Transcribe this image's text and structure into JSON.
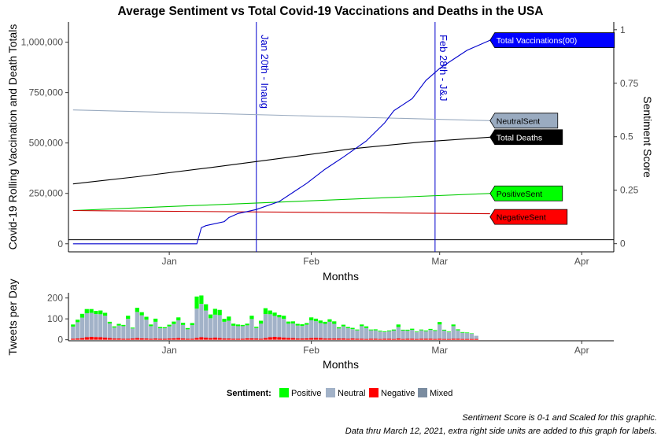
{
  "chart_data": [
    {
      "type": "line",
      "title": "Average Sentiment vs Total Covid-19 Vaccinations and Deaths in the USA",
      "xlabel": "Months",
      "ylabel": "Covid-19 Rolling Vaccination and Death Totals",
      "y2label": "Sentiment Score",
      "x_ticks": [
        "Jan",
        "Feb",
        "Mar",
        "Apr"
      ],
      "x_tick_dates": [
        "2021-01-01",
        "2021-02-01",
        "2021-03-01",
        "2021-04-01"
      ],
      "xlim": [
        "2020-12-10",
        "2021-04-08"
      ],
      "ylim": [
        -40000,
        1100000
      ],
      "y_ticks": [
        0,
        250000,
        500000,
        750000,
        1000000
      ],
      "y_tick_labels": [
        "0",
        "250,000",
        "500,000",
        "750,000",
        "1,000,000"
      ],
      "y2lim": [
        -0.038,
        1.036
      ],
      "y2_ticks": [
        0,
        0.25,
        0.5,
        0.75,
        1
      ],
      "y2_tick_labels": [
        "0",
        "0.25",
        "0.5",
        "0.75",
        "1"
      ],
      "grid": false,
      "hline_y": 20000,
      "vlines": [
        {
          "date": "2021-01-20",
          "label": "Jan 20th - Inaug",
          "color": "#0000cc"
        },
        {
          "date": "2021-02-28",
          "label": "Feb 28th - J&J",
          "color": "#0000cc"
        }
      ],
      "series": [
        {
          "name": "Total Vaccinations(00)",
          "axis": "left",
          "color": "#0000cc",
          "fill": "#0000ff",
          "text_color": "#ffffff",
          "x": [
            "2020-12-11",
            "2020-12-14",
            "2020-12-20",
            "2020-12-31",
            "2021-01-07",
            "2021-01-08",
            "2021-01-09",
            "2021-01-13",
            "2021-01-14",
            "2021-01-16",
            "2021-01-18",
            "2021-01-20",
            "2021-01-25",
            "2021-01-31",
            "2021-02-04",
            "2021-02-08",
            "2021-02-13",
            "2021-02-17",
            "2021-02-19",
            "2021-02-23",
            "2021-02-26",
            "2021-03-01",
            "2021-03-05",
            "2021-03-07",
            "2021-03-10",
            "2021-03-12"
          ],
          "values": [
            0,
            0,
            0,
            0,
            0,
            80000,
            90000,
            110000,
            130000,
            150000,
            160000,
            170000,
            210000,
            300000,
            370000,
            430000,
            510000,
            600000,
            660000,
            720000,
            810000,
            870000,
            930000,
            960000,
            990000,
            1010000
          ]
        },
        {
          "name": "Total Deaths",
          "axis": "left",
          "color": "#000000",
          "fill": "#000000",
          "text_color": "#ffffff",
          "x": [
            "2020-12-11",
            "2020-12-25",
            "2021-01-10",
            "2021-01-25",
            "2021-02-10",
            "2021-02-25",
            "2021-03-12"
          ],
          "values": [
            297000,
            333000,
            378000,
            423000,
            472000,
            505000,
            529000
          ]
        },
        {
          "name": "NeutralSent",
          "axis": "right",
          "color": "#9aabc0",
          "fill": "#9aabc0",
          "text_color": "#000000",
          "x": [
            "2020-12-11",
            "2021-03-12"
          ],
          "values": [
            0.625,
            0.575
          ]
        },
        {
          "name": "PositiveSent",
          "axis": "right",
          "color": "#00cc00",
          "fill": "#00ff00",
          "text_color": "#000000",
          "x": [
            "2020-12-11",
            "2021-03-12"
          ],
          "values": [
            0.155,
            0.235
          ]
        },
        {
          "name": "NegativeSent",
          "axis": "right",
          "color": "#cc0000",
          "fill": "#ff0000",
          "text_color": "#000000",
          "x": [
            "2020-12-11",
            "2021-03-12"
          ],
          "values": [
            0.155,
            0.14
          ]
        }
      ]
    },
    {
      "type": "bar",
      "stacked": true,
      "xlabel": "Months",
      "ylabel": "Tweets per Day",
      "x_ticks": [
        "Jan",
        "Feb",
        "Mar",
        "Apr"
      ],
      "x_tick_dates": [
        "2021-01-01",
        "2021-02-01",
        "2021-03-01",
        "2021-04-01"
      ],
      "xlim": [
        "2020-12-10",
        "2021-04-08"
      ],
      "ylim": [
        -5,
        225
      ],
      "y_ticks": [
        0,
        100,
        200
      ],
      "y_tick_labels": [
        "0",
        "100",
        "200"
      ],
      "grid": false,
      "start_date": "2020-12-11",
      "series": [
        {
          "name": "Negative",
          "color": "#ff0000",
          "values": [
            5,
            6,
            8,
            12,
            14,
            13,
            12,
            10,
            8,
            6,
            6,
            5,
            5,
            6,
            8,
            7,
            6,
            5,
            6,
            5,
            5,
            6,
            7,
            8,
            6,
            5,
            5,
            9,
            12,
            10,
            8,
            10,
            8,
            6,
            6,
            5,
            5,
            5,
            7,
            7,
            6,
            5,
            8,
            12,
            14,
            12,
            10,
            9,
            8,
            6,
            6,
            7,
            8,
            9,
            8,
            6,
            6,
            6,
            6,
            6,
            5,
            6,
            5,
            5,
            4,
            5,
            5,
            4,
            5,
            5,
            4,
            6,
            4,
            5,
            5,
            4,
            5,
            5,
            5,
            4,
            5,
            4,
            4,
            5,
            5,
            4,
            4,
            4,
            4
          ]
        },
        {
          "name": "Neutral",
          "color": "#a2b2c8",
          "values": [
            58,
            78,
            98,
            115,
            115,
            110,
            110,
            105,
            70,
            52,
            62,
            60,
            95,
            48,
            125,
            110,
            90,
            60,
            80,
            50,
            50,
            58,
            68,
            85,
            65,
            45,
            65,
            140,
            160,
            130,
            95,
            110,
            110,
            80,
            85,
            62,
            60,
            60,
            62,
            92,
            50,
            72,
            115,
            110,
            100,
            95,
            90,
            68,
            70,
            62,
            60,
            65,
            85,
            80,
            72,
            70,
            80,
            70,
            48,
            58,
            50,
            45,
            40,
            60,
            52,
            40,
            40,
            35,
            32,
            35,
            40,
            55,
            40,
            38,
            42,
            32,
            40,
            35,
            42,
            38,
            68,
            40,
            32,
            60,
            40,
            30,
            28,
            25,
            15
          ]
        },
        {
          "name": "Mixed",
          "color": "#7a8ca0",
          "values": [
            0,
            0,
            0,
            0,
            0,
            0,
            0,
            0,
            0,
            0,
            0,
            0,
            0,
            0,
            0,
            0,
            0,
            0,
            0,
            0,
            0,
            0,
            0,
            0,
            0,
            0,
            0,
            0,
            0,
            0,
            0,
            0,
            0,
            0,
            0,
            0,
            0,
            0,
            0,
            0,
            0,
            0,
            0,
            0,
            0,
            0,
            0,
            0,
            0,
            0,
            0,
            0,
            0,
            0,
            0,
            0,
            0,
            0,
            0,
            0,
            0,
            0,
            0,
            0,
            0,
            0,
            0,
            0,
            0,
            0,
            0,
            0,
            0,
            0,
            0,
            0,
            0,
            0,
            0,
            0,
            0,
            0,
            0,
            0,
            0,
            0,
            0,
            0,
            0
          ]
        },
        {
          "name": "Positive",
          "color": "#00ff00",
          "values": [
            10,
            12,
            18,
            20,
            18,
            15,
            18,
            14,
            8,
            6,
            8,
            6,
            15,
            4,
            20,
            15,
            14,
            8,
            15,
            6,
            5,
            8,
            12,
            14,
            10,
            6,
            10,
            58,
            40,
            30,
            18,
            28,
            25,
            14,
            20,
            10,
            8,
            6,
            8,
            16,
            6,
            14,
            28,
            18,
            16,
            12,
            15,
            10,
            10,
            8,
            8,
            8,
            14,
            12,
            12,
            10,
            12,
            12,
            6,
            8,
            6,
            6,
            4,
            8,
            8,
            4,
            5,
            4,
            3,
            4,
            5,
            12,
            4,
            5,
            6,
            3,
            4,
            4,
            5,
            4,
            12,
            4,
            3,
            8,
            5,
            3,
            3,
            2,
            0
          ]
        }
      ]
    }
  ],
  "legend": {
    "title": "Sentiment:",
    "items": [
      {
        "label": "Positive",
        "color": "#00ff00"
      },
      {
        "label": "Neutral",
        "color": "#a2b2c8"
      },
      {
        "label": "Negative",
        "color": "#ff0000"
      },
      {
        "label": "Mixed",
        "color": "#7a8ca0"
      }
    ]
  },
  "captions": {
    "line1": "Sentiment Score is 0-1 and Scaled for this graphic.",
    "line2": "Data thru March 12, 2021, extra right side units are added to this graph for labels."
  }
}
